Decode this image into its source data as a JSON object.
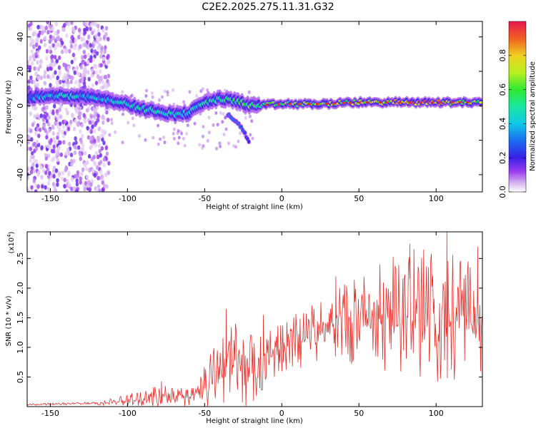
{
  "title": "C2E2.2025.275.11.31.G32",
  "colors": {
    "snr_line": "#e8302a",
    "track_core": "#e03030",
    "frame": "#000000"
  },
  "chart_data": [
    {
      "type": "heatmap",
      "title": "C2E2.2025.275.11.31.G32",
      "xlabel": "Height of straight line (km)",
      "ylabel": "Frequency (Hz)",
      "xlim": [
        -165,
        130
      ],
      "ylim": [
        -50,
        49
      ],
      "xticks": [
        -150,
        -100,
        -50,
        0,
        50,
        100
      ],
      "yticks": [
        -40,
        -20,
        0,
        20,
        40
      ],
      "colorbar": {
        "label": "Normalized spectral amplitude",
        "range": [
          0,
          1
        ],
        "ticks": [
          "0.0",
          "0.2",
          "0.4",
          "0.6",
          "0.8"
        ]
      },
      "main_track": [
        {
          "x": -165,
          "f": 5,
          "amp": 0.35
        },
        {
          "x": -140,
          "f": 6,
          "amp": 0.45
        },
        {
          "x": -120,
          "f": 5,
          "amp": 0.4
        },
        {
          "x": -110,
          "f": 3,
          "amp": 0.45
        },
        {
          "x": -100,
          "f": 1,
          "amp": 0.45
        },
        {
          "x": -90,
          "f": -2,
          "amp": 0.5
        },
        {
          "x": -80,
          "f": -3,
          "amp": 0.45
        },
        {
          "x": -70,
          "f": -5,
          "amp": 0.45
        },
        {
          "x": -60,
          "f": -4,
          "amp": 0.45
        },
        {
          "x": -50,
          "f": 2,
          "amp": 0.5
        },
        {
          "x": -40,
          "f": 4,
          "amp": 0.5
        },
        {
          "x": -30,
          "f": 3,
          "amp": 0.55
        },
        {
          "x": -20,
          "f": 0,
          "amp": 0.6
        },
        {
          "x": 0,
          "f": 1,
          "amp": 0.65
        },
        {
          "x": 25,
          "f": 1,
          "amp": 0.7
        },
        {
          "x": 50,
          "f": 2,
          "amp": 0.75
        },
        {
          "x": 75,
          "f": 2,
          "amp": 0.8
        },
        {
          "x": 95,
          "f": 2,
          "amp": 0.9
        },
        {
          "x": 110,
          "f": 2,
          "amp": 0.75
        },
        {
          "x": 130,
          "f": 2,
          "amp": 0.7
        }
      ],
      "secondary_track": [
        {
          "x": -35,
          "f": -5,
          "amp": 0.3
        },
        {
          "x": -28,
          "f": -10,
          "amp": 0.3
        },
        {
          "x": -24,
          "f": -16,
          "amp": 0.25
        },
        {
          "x": -21,
          "f": -21,
          "amp": 0.2
        }
      ]
    },
    {
      "type": "line",
      "xlabel": "Height of straight line (km)",
      "ylabel": "SNR (10 * v/v)",
      "y_multiplier": "(x10",
      "y_multiplier_exp": "4",
      "xlim": [
        -165,
        130
      ],
      "ylim": [
        0,
        2.95
      ],
      "xticks": [
        -150,
        -100,
        -50,
        0,
        50,
        100
      ],
      "yticks": [
        0.5,
        1.0,
        1.5,
        2.0,
        2.5
      ],
      "ytick_labels": [
        "0.5",
        "1.0",
        "1.5",
        "2.0",
        "2.5"
      ],
      "series": [
        {
          "name": "SNR",
          "envelope": [
            {
              "x": -165,
              "base": 0.03,
              "spread": 0.02
            },
            {
              "x": -120,
              "base": 0.05,
              "spread": 0.03
            },
            {
              "x": -100,
              "base": 0.08,
              "spread": 0.12
            },
            {
              "x": -80,
              "base": 0.12,
              "spread": 0.25
            },
            {
              "x": -60,
              "base": 0.15,
              "spread": 0.2
            },
            {
              "x": -50,
              "base": 0.3,
              "spread": 0.5
            },
            {
              "x": -40,
              "base": 0.45,
              "spread": 0.7
            },
            {
              "x": -30,
              "base": 0.55,
              "spread": 0.9
            },
            {
              "x": -18,
              "base": 0.35,
              "spread": 0.9
            },
            {
              "x": -10,
              "base": 0.8,
              "spread": 0.6
            },
            {
              "x": 0,
              "base": 0.9,
              "spread": 0.5
            },
            {
              "x": 10,
              "base": 1.05,
              "spread": 0.6
            },
            {
              "x": 25,
              "base": 1.2,
              "spread": 0.6
            },
            {
              "x": 40,
              "base": 1.3,
              "spread": 0.8
            },
            {
              "x": 60,
              "base": 1.35,
              "spread": 1.0
            },
            {
              "x": 80,
              "base": 1.35,
              "spread": 1.3
            },
            {
              "x": 100,
              "base": 1.35,
              "spread": 1.4
            },
            {
              "x": 115,
              "base": 1.3,
              "spread": 1.3
            },
            {
              "x": 130,
              "base": 1.3,
              "spread": 1.0
            }
          ],
          "peaks": [
            {
              "x": -78,
              "y": 0.43
            },
            {
              "x": -36,
              "y": 1.65
            },
            {
              "x": -12,
              "y": 1.55
            },
            {
              "x": 35,
              "y": 2.2
            },
            {
              "x": 83,
              "y": 2.75
            },
            {
              "x": 107,
              "y": 2.95
            },
            {
              "x": 127,
              "y": 2.7
            }
          ]
        }
      ]
    }
  ]
}
